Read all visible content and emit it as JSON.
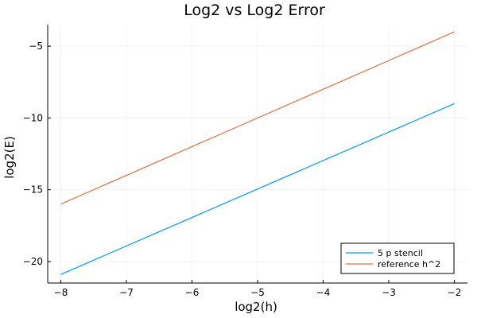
{
  "chart_data": {
    "type": "line",
    "title": "Log2 vs Log2 Error",
    "xlabel": "log2(h)",
    "ylabel": "log2(E)",
    "xlim": [
      -8.2,
      -1.8
    ],
    "ylim": [
      -21.5,
      -3.5
    ],
    "xticks": [
      -8,
      -7,
      -6,
      -5,
      -4,
      -3,
      -2
    ],
    "yticks": [
      -20,
      -15,
      -10,
      -5
    ],
    "grid": true,
    "legend_position": "bottom-right",
    "series": [
      {
        "name": "5 p stencil",
        "color": "#009AFA",
        "x": [
          -8,
          -2
        ],
        "y": [
          -20.9,
          -9.0
        ]
      },
      {
        "name": "reference h^2",
        "color": "#E26F46",
        "x": [
          -8,
          -2
        ],
        "y": [
          -16.0,
          -4.0
        ]
      }
    ]
  }
}
